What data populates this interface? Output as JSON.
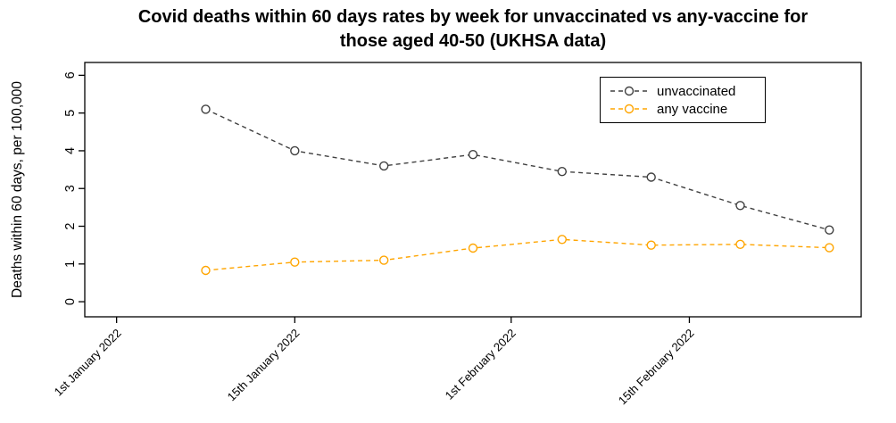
{
  "chart_data": {
    "type": "line",
    "title_line1": "Covid deaths within 60 days rates by week for unvaccinated vs any-vaccine for",
    "title_line2": "those aged 40-50 (UKHSA data)",
    "ylabel": "Deaths within 60 days, per 100,000",
    "xlabel": "",
    "xlim": [
      -2.5,
      58.5
    ],
    "ylim": [
      -0.4,
      6.34
    ],
    "grid": false,
    "y_ticks": [
      0,
      1,
      2,
      3,
      4,
      5,
      6
    ],
    "x_ticks": [
      {
        "label": "1st January 2022",
        "day": 0
      },
      {
        "label": "15th January 2022",
        "day": 14
      },
      {
        "label": "1st February 2022",
        "day": 31
      },
      {
        "label": "15th February 2022",
        "day": 45
      }
    ],
    "x_days": [
      7,
      14,
      21,
      28,
      35,
      42,
      49,
      56
    ],
    "series": [
      {
        "name": "unvaccinated",
        "color": "#404040",
        "dash": "5,4",
        "marker": "open-circle",
        "values": [
          5.1,
          4.0,
          3.6,
          3.9,
          3.45,
          3.3,
          2.55,
          1.9
        ]
      },
      {
        "name": "any vaccine",
        "color": "#FFA500",
        "dash": "5,4",
        "marker": "open-circle",
        "values": [
          0.83,
          1.05,
          1.1,
          1.42,
          1.65,
          1.5,
          1.52,
          1.43
        ]
      }
    ],
    "legend": {
      "position": "top-right",
      "entries": [
        "unvaccinated",
        "any vaccine"
      ]
    }
  }
}
